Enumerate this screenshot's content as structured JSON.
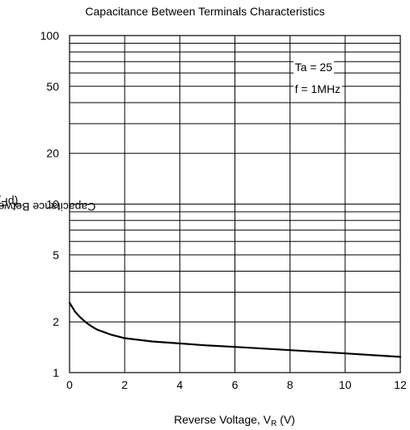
{
  "chart_data": {
    "type": "line",
    "title": "Capacitance Between Terminals Characteristics",
    "xlabel": {
      "main": "Reverse Voltage, V",
      "sub": "R",
      "unit": " (V)"
    },
    "ylabel": {
      "main": "Capacitance Between Terminals, C",
      "sub": "T",
      "unit": " (pF)"
    },
    "xlim": [
      0,
      12
    ],
    "ylim": [
      1,
      100
    ],
    "yscale": "log",
    "xticks": [
      0,
      2,
      4,
      6,
      8,
      10,
      12
    ],
    "xtick_labels": [
      "0",
      "2",
      "4",
      "6",
      "8",
      "10",
      "12"
    ],
    "yticks": [
      1,
      2,
      5,
      10,
      20,
      50,
      100
    ],
    "ytick_labels": [
      "1",
      "2",
      "5",
      "10",
      "20",
      "50",
      "100"
    ],
    "grid": true,
    "line_color": "#000000",
    "annotations": [
      "Ta = 25",
      "f = 1MHz"
    ],
    "series": [
      {
        "x": [
          0,
          0.2,
          0.4,
          0.6,
          0.8,
          1.0,
          1.5,
          2,
          3,
          4,
          5,
          6,
          7,
          8,
          9,
          10,
          11,
          12
        ],
        "y": [
          2.6,
          2.3,
          2.12,
          1.98,
          1.88,
          1.8,
          1.68,
          1.6,
          1.53,
          1.49,
          1.45,
          1.42,
          1.39,
          1.36,
          1.33,
          1.3,
          1.27,
          1.24
        ]
      }
    ]
  }
}
